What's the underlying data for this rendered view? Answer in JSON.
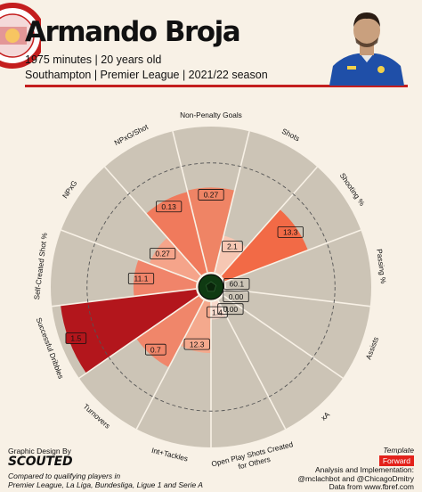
{
  "header": {
    "player_name": "Armando Broja",
    "line1": "1975 minutes | 20 years old",
    "line2": "Southampton | Premier League | 2021/22 season"
  },
  "colors": {
    "accent_red": "#c41e1e",
    "background": "#f8f1e6",
    "sector_bg": "#ccc4b6",
    "center_dark": "#0f3a12"
  },
  "icons": {
    "club_crest": "southampton-crest-icon",
    "player_photo": "player-photo-icon"
  },
  "chart_data": {
    "type": "polar-bar",
    "scale": "percentile",
    "rlim": [
      0,
      100
    ],
    "reference_ring": 75,
    "categories": [
      "Non-Penalty Goals",
      "Shots",
      "Shooting %",
      "Passing %",
      "Assists",
      "xA",
      "Open Play Shots Created for Others",
      "Int+Tackles",
      "Turnovers",
      "Successful Dribbles",
      "Self-Created Shot %",
      "NPxG",
      "NPxG/Shot"
    ],
    "values": [
      0.27,
      2.1,
      13.3,
      60.1,
      0.0,
      0.0,
      1.4,
      12.3,
      0.7,
      1.5,
      11.1,
      0.27,
      0.13
    ],
    "value_labels": [
      "0.27",
      "2.1",
      "13.3",
      "60.1",
      "0.00",
      "0.00",
      "1.4",
      "12.3",
      "0.7",
      "1.5",
      "11.1",
      "0.27",
      "0.13"
    ],
    "percentiles": [
      58,
      26,
      61,
      0,
      0,
      0,
      12,
      35,
      52,
      94,
      43,
      35,
      57
    ],
    "bar_colors": [
      "#ef8465",
      "#f6c7b3",
      "#f26a46",
      "#f8d9cc",
      "#f8d9cc",
      "#f8d9cc",
      "#f8d9cc",
      "#f4a98d",
      "#f0866a",
      "#b3161c",
      "#f0846a",
      "#f5a48a",
      "#f07a5c"
    ]
  },
  "footer": {
    "design_label": "Graphic Design By",
    "design_brand": "SCOUTED",
    "compare_line1": "Compared to qualifying players in",
    "compare_line2": "Premier League, La Liga, Bundesliga, Ligue 1 and Serie A",
    "template_label": "Template",
    "position_badge": "Forward",
    "analysis_line1": "Analysis and Implementation:",
    "analysis_line2": "@mclachbot and @ChicagoDmitry",
    "analysis_line3": "Data from www.fbref.com"
  }
}
